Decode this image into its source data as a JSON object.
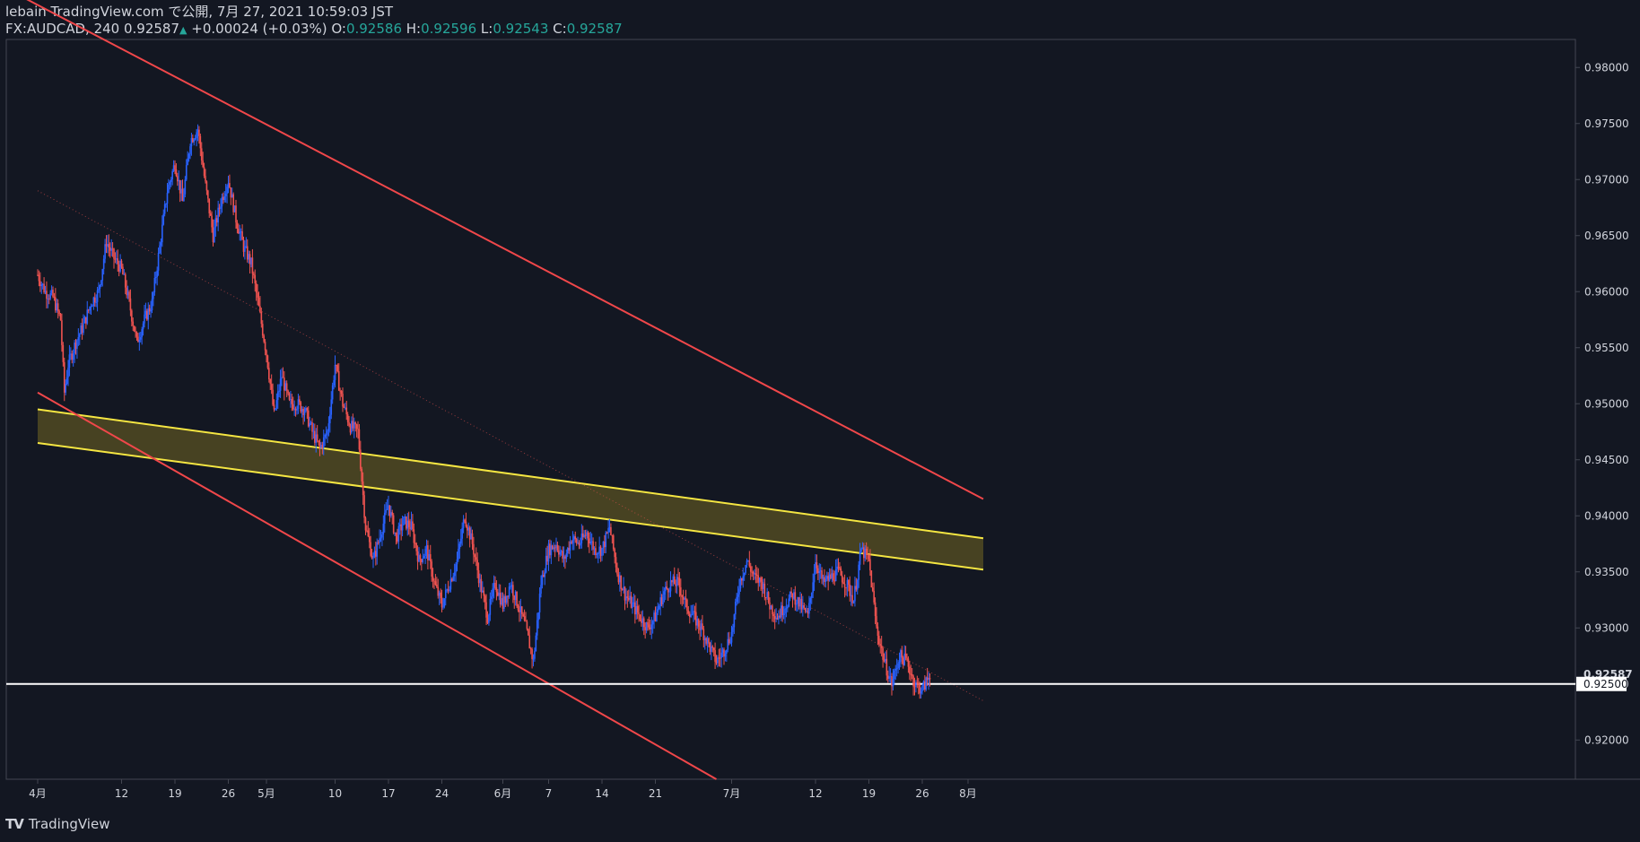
{
  "header": {
    "line1": "lebain TradingView.com で公開, 7月 27, 2021 10:59:03 JST",
    "symbol": "FX:AUDCAD, 240",
    "last": "0.92587",
    "arrow": "▲",
    "change": "+0.00024 (+0.03%)",
    "o_label": "O:",
    "o_value": "0.92586",
    "h_label": "H:",
    "h_value": "0.92596",
    "l_label": "L:",
    "l_value": "0.92543",
    "c_label": "C:",
    "c_value": "0.92587"
  },
  "logo": {
    "mark": "TV",
    "text": "TradingView"
  },
  "colors": {
    "background": "#131722",
    "up": "#2962ff",
    "down": "#ef5350",
    "channel": "#f0474a",
    "zone_line": "#f5e642",
    "zone_fill": "#5a5223",
    "horizontal": "#ffffff",
    "grid": "#2a2e39"
  },
  "chart_data": {
    "type": "candlestick",
    "title": "FX:AUDCAD, 240",
    "ylim": [
      0.9165,
      0.9825
    ],
    "y_ticks": [
      "0.98000",
      "0.97500",
      "0.97000",
      "0.96500",
      "0.96000",
      "0.95500",
      "0.95000",
      "0.94500",
      "0.94000",
      "0.93500",
      "0.93000",
      "0.92500",
      "0.92000"
    ],
    "x_ticks": [
      {
        "label": "4月",
        "day": 0
      },
      {
        "label": "12",
        "day": 11
      },
      {
        "label": "19",
        "day": 18
      },
      {
        "label": "26",
        "day": 25
      },
      {
        "label": "5月",
        "day": 30
      },
      {
        "label": "10",
        "day": 39
      },
      {
        "label": "17",
        "day": 46
      },
      {
        "label": "24",
        "day": 53
      },
      {
        "label": "6月",
        "day": 61
      },
      {
        "label": "7",
        "day": 67
      },
      {
        "label": "14",
        "day": 74
      },
      {
        "label": "21",
        "day": 81
      },
      {
        "label": "7月",
        "day": 91
      },
      {
        "label": "12",
        "day": 102
      },
      {
        "label": "19",
        "day": 109
      },
      {
        "label": "26",
        "day": 116
      },
      {
        "label": "8月",
        "day": 122
      }
    ],
    "close_path": [
      [
        0,
        0.9615
      ],
      [
        1,
        0.96
      ],
      [
        2,
        0.9595
      ],
      [
        3,
        0.9575
      ],
      [
        3.5,
        0.951
      ],
      [
        4,
        0.9535
      ],
      [
        5,
        0.9555
      ],
      [
        6,
        0.957
      ],
      [
        7,
        0.959
      ],
      [
        8,
        0.96
      ],
      [
        9,
        0.9645
      ],
      [
        10,
        0.963
      ],
      [
        11,
        0.962
      ],
      [
        12,
        0.959
      ],
      [
        13,
        0.9555
      ],
      [
        14,
        0.9575
      ],
      [
        15,
        0.959
      ],
      [
        16,
        0.964
      ],
      [
        17,
        0.969
      ],
      [
        18,
        0.9715
      ],
      [
        19,
        0.968
      ],
      [
        20,
        0.9735
      ],
      [
        21,
        0.9745
      ],
      [
        22,
        0.9695
      ],
      [
        23,
        0.965
      ],
      [
        24,
        0.968
      ],
      [
        25,
        0.97
      ],
      [
        26,
        0.9665
      ],
      [
        27,
        0.964
      ],
      [
        28,
        0.9625
      ],
      [
        29,
        0.9585
      ],
      [
        30,
        0.9545
      ],
      [
        31,
        0.949
      ],
      [
        32,
        0.9525
      ],
      [
        33,
        0.95
      ],
      [
        34,
        0.95
      ],
      [
        35,
        0.9495
      ],
      [
        36,
        0.9475
      ],
      [
        37,
        0.946
      ],
      [
        38,
        0.9475
      ],
      [
        39,
        0.9535
      ],
      [
        40,
        0.95
      ],
      [
        41,
        0.948
      ],
      [
        42,
        0.9475
      ],
      [
        43,
        0.939
      ],
      [
        44,
        0.936
      ],
      [
        45,
        0.9385
      ],
      [
        46,
        0.941
      ],
      [
        47,
        0.938
      ],
      [
        48,
        0.9395
      ],
      [
        49,
        0.939
      ],
      [
        50,
        0.936
      ],
      [
        51,
        0.937
      ],
      [
        52,
        0.934
      ],
      [
        53,
        0.932
      ],
      [
        54,
        0.934
      ],
      [
        55,
        0.936
      ],
      [
        56,
        0.94
      ],
      [
        57,
        0.9375
      ],
      [
        58,
        0.934
      ],
      [
        59,
        0.931
      ],
      [
        60,
        0.934
      ],
      [
        61,
        0.932
      ],
      [
        62,
        0.934
      ],
      [
        63,
        0.932
      ],
      [
        64,
        0.93
      ],
      [
        65,
        0.927
      ],
      [
        66,
        0.934
      ],
      [
        67,
        0.937
      ],
      [
        68,
        0.9375
      ],
      [
        69,
        0.936
      ],
      [
        70,
        0.938
      ],
      [
        71,
        0.9375
      ],
      [
        72,
        0.9385
      ],
      [
        73,
        0.937
      ],
      [
        74,
        0.937
      ],
      [
        75,
        0.939
      ],
      [
        76,
        0.935
      ],
      [
        77,
        0.933
      ],
      [
        78,
        0.932
      ],
      [
        79,
        0.931
      ],
      [
        80,
        0.93
      ],
      [
        81,
        0.931
      ],
      [
        82,
        0.933
      ],
      [
        83,
        0.934
      ],
      [
        84,
        0.934
      ],
      [
        85,
        0.932
      ],
      [
        86,
        0.931
      ],
      [
        87,
        0.93
      ],
      [
        88,
        0.9285
      ],
      [
        89,
        0.927
      ],
      [
        90,
        0.928
      ],
      [
        91,
        0.9295
      ],
      [
        92,
        0.934
      ],
      [
        93,
        0.936
      ],
      [
        94,
        0.9345
      ],
      [
        95,
        0.934
      ],
      [
        96,
        0.932
      ],
      [
        97,
        0.931
      ],
      [
        98,
        0.932
      ],
      [
        99,
        0.933
      ],
      [
        100,
        0.932
      ],
      [
        101,
        0.931
      ],
      [
        102,
        0.936
      ],
      [
        103,
        0.934
      ],
      [
        104,
        0.9345
      ],
      [
        105,
        0.935
      ],
      [
        106,
        0.934
      ],
      [
        107,
        0.9325
      ],
      [
        108,
        0.937
      ],
      [
        109,
        0.936
      ],
      [
        110,
        0.93
      ],
      [
        111,
        0.927
      ],
      [
        112,
        0.925
      ],
      [
        113,
        0.9275
      ],
      [
        114,
        0.927
      ],
      [
        115,
        0.925
      ],
      [
        116,
        0.9245
      ],
      [
        117,
        0.9258
      ]
    ],
    "channel_upper": [
      [
        -4,
        0.987
      ],
      [
        124,
        0.9415
      ]
    ],
    "channel_lower": [
      [
        0,
        0.951
      ],
      [
        89,
        0.9165
      ]
    ],
    "zone_upper": [
      [
        0,
        0.9495
      ],
      [
        124,
        0.938
      ]
    ],
    "zone_lower": [
      [
        0,
        0.9465
      ],
      [
        124,
        0.9352
      ]
    ],
    "dotted_midline": [
      [
        0,
        0.969
      ],
      [
        124,
        0.9235
      ]
    ],
    "horizontal_level": 0.925,
    "last_price_label": "0.92587",
    "level_label": "0.92500",
    "last_price": 0.92587
  }
}
